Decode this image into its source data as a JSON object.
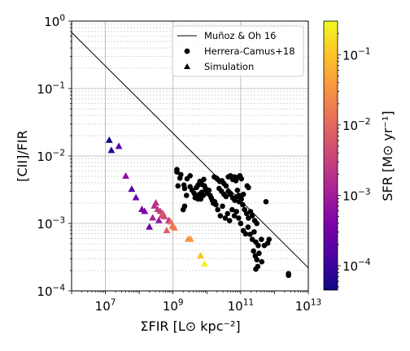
{
  "chart_data": {
    "type": "scatter",
    "title": "",
    "xlabel": "ΣFIR [L⊙ kpc⁻²]",
    "ylabel": "[CII]/FIR",
    "xscale": "log",
    "yscale": "log",
    "xlim": [
      1000000.0,
      10000000000000.0
    ],
    "ylim": [
      0.0001,
      1
    ],
    "grid": true,
    "legend_position": "top-right",
    "x_ticks": [
      {
        "value": 10000000.0,
        "label_base": "10",
        "label_exp": "7"
      },
      {
        "value": 1000000000.0,
        "label_base": "10",
        "label_exp": "9"
      },
      {
        "value": 100000000000.0,
        "label_base": "10",
        "label_exp": "11"
      },
      {
        "value": 10000000000000.0,
        "label_base": "10",
        "label_exp": "13"
      }
    ],
    "y_ticks": [
      {
        "value": 0.0001,
        "label_base": "10",
        "label_exp": "−4"
      },
      {
        "value": 0.001,
        "label_base": "10",
        "label_exp": "−3"
      },
      {
        "value": 0.01,
        "label_base": "10",
        "label_exp": "−2"
      },
      {
        "value": 0.1,
        "label_base": "10",
        "label_exp": "−1"
      },
      {
        "value": 1,
        "label_base": "10",
        "label_exp": "0"
      }
    ],
    "colorbar": {
      "label": "SFR [M⊙ yr⁻¹]",
      "scale": "log",
      "range": [
        4.5e-05,
        0.3
      ],
      "colormap": "plasma",
      "ticks": [
        {
          "value": 0.0001,
          "label_base": "10",
          "label_exp": "−4"
        },
        {
          "value": 0.001,
          "label_base": "10",
          "label_exp": "−3"
        },
        {
          "value": 0.01,
          "label_base": "10",
          "label_exp": "−2"
        },
        {
          "value": 0.1,
          "label_base": "10",
          "label_exp": "−1"
        }
      ]
    },
    "series": [
      {
        "name": "Muñoz & Oh 16",
        "kind": "line",
        "color": "#000000",
        "points": [
          [
            1000000.0,
            0.68
          ],
          [
            10000000000000.0,
            0.00022
          ]
        ]
      },
      {
        "name": "Herrera-Camus+18",
        "kind": "scatter",
        "marker": "circle",
        "color": "#000000",
        "points": [
          [
            1300000000.0,
            0.0063
          ],
          [
            1300000000.0,
            0.0058
          ],
          [
            1700000000.0,
            0.0053
          ],
          [
            1600000000.0,
            0.0047
          ],
          [
            1400000000.0,
            0.0036
          ],
          [
            2100000000.0,
            0.0037
          ],
          [
            2600000000.0,
            0.0046
          ],
          [
            3200000000.0,
            0.0051
          ],
          [
            2200000000.0,
            0.0033
          ],
          [
            2500000000.0,
            0.0026
          ],
          [
            2200000000.0,
            0.0018
          ],
          [
            2000000000.0,
            0.0016
          ],
          [
            3200000000.0,
            0.0035
          ],
          [
            3700000000.0,
            0.0031
          ],
          [
            4200000000.0,
            0.0028
          ],
          [
            4500000000.0,
            0.0024
          ],
          [
            5000000000.0,
            0.0025
          ],
          [
            5500000000.0,
            0.0023
          ],
          [
            6000000000.0,
            0.0027
          ],
          [
            6600000000.0,
            0.0023
          ],
          [
            7100000000.0,
            0.0029
          ],
          [
            7800000000.0,
            0.0026
          ],
          [
            4900000000.0,
            0.0034
          ],
          [
            5500000000.0,
            0.0037
          ],
          [
            6200000000.0,
            0.0042
          ],
          [
            7100000000.0,
            0.0038
          ],
          [
            8100000000.0,
            0.0045
          ],
          [
            8500000000.0,
            0.0036
          ],
          [
            9100000000.0,
            0.0033
          ],
          [
            10000000000.0,
            0.003
          ],
          [
            10500000000.0,
            0.0028
          ],
          [
            11500000000.0,
            0.0031
          ],
          [
            12500000000.0,
            0.0026
          ],
          [
            13500000000.0,
            0.0024
          ],
          [
            14500000000.0,
            0.0022
          ],
          [
            15500000000.0,
            0.002
          ],
          [
            17000000000.0,
            0.0021
          ],
          [
            18500000000.0,
            0.0019
          ],
          [
            16500000000.0,
            0.0049
          ],
          [
            19000000000.0,
            0.0047
          ],
          [
            21000000000.0,
            0.0045
          ],
          [
            24000000000.0,
            0.0042
          ],
          [
            28000000000.0,
            0.0043
          ],
          [
            32000000000.0,
            0.0039
          ],
          [
            37000000000.0,
            0.0036
          ],
          [
            43000000000.0,
            0.0049
          ],
          [
            50000000000.0,
            0.0051
          ],
          [
            58000000000.0,
            0.0045
          ],
          [
            65000000000.0,
            0.0049
          ],
          [
            72000000000.0,
            0.0043
          ],
          [
            80000000000.0,
            0.0048
          ],
          [
            95000000000.0,
            0.0051
          ],
          [
            105000000000.0,
            0.0046
          ],
          [
            23000000000.0,
            0.0033
          ],
          [
            27000000000.0,
            0.003
          ],
          [
            32000000000.0,
            0.0027
          ],
          [
            37000000000.0,
            0.0025
          ],
          [
            43000000000.0,
            0.003
          ],
          [
            50000000000.0,
            0.0027
          ],
          [
            58000000000.0,
            0.0024
          ],
          [
            67000000000.0,
            0.0022
          ],
          [
            78000000000.0,
            0.0025
          ],
          [
            90000000000.0,
            0.0021
          ],
          [
            105000000000.0,
            0.0023
          ],
          [
            21000000000.0,
            0.0016
          ],
          [
            25000000000.0,
            0.0013
          ],
          [
            29000000000.0,
            0.0018
          ],
          [
            35000000000.0,
            0.0012
          ],
          [
            41000000000.0,
            0.0014
          ],
          [
            47000000000.0,
            0.0011
          ],
          [
            56000000000.0,
            0.0016
          ],
          [
            65000000000.0,
            0.0013
          ],
          [
            75000000000.0,
            0.0015
          ],
          [
            87000000000.0,
            0.0012
          ],
          [
            100000000000.0,
            0.001
          ],
          [
            115000000000.0,
            0.0019
          ],
          [
            130000000000.0,
            0.0016
          ],
          [
            150000000000.0,
            0.0014
          ],
          [
            170000000000.0,
            0.0012
          ],
          [
            195000000000.0,
            0.0015
          ],
          [
            120000000000.0,
            0.00078
          ],
          [
            140000000000.0,
            0.0007
          ],
          [
            165000000000.0,
            0.00088
          ],
          [
            190000000000.0,
            0.00069
          ],
          [
            220000000000.0,
            0.00058
          ],
          [
            250000000000.0,
            0.00075
          ],
          [
            280000000000.0,
            0.00053
          ],
          [
            330000000000.0,
            0.00047
          ],
          [
            410000000000.0,
            0.00058
          ],
          [
            500000000000.0,
            0.00047
          ],
          [
            240000000000.0,
            0.00039
          ],
          [
            270000000000.0,
            0.00033
          ],
          [
            300000000000.0,
            0.00029
          ],
          [
            350000000000.0,
            0.00036
          ],
          [
            320000000000.0,
            0.00023
          ],
          [
            280000000000.0,
            0.00021
          ],
          [
            420000000000.0,
            0.00027
          ],
          [
            630000000000.0,
            0.00051
          ],
          [
            690000000000.0,
            0.00058
          ],
          [
            220000000000.0,
            0.0013
          ],
          [
            260000000000.0,
            0.0011
          ],
          [
            300000000000.0,
            0.001
          ],
          [
            155000000000.0,
            0.0036
          ],
          [
            170000000000.0,
            0.0034
          ],
          [
            560000000000.0,
            0.0021
          ],
          [
            2600000000000.0,
            0.00018
          ],
          [
            2600000000000.0,
            0.00017
          ],
          [
            80000000000.0,
            0.0031
          ],
          [
            88000000000.0,
            0.0026
          ],
          [
            120000000000.0,
            0.0027
          ]
        ]
      },
      {
        "name": "Simulation",
        "kind": "scatter",
        "marker": "triangle",
        "points": [
          [
            13000000.0,
            0.017,
            4.8e-05
          ],
          [
            15000000.0,
            0.012,
            7e-05
          ],
          [
            25000000.0,
            0.0138,
            0.00018
          ],
          [
            40000000.0,
            0.005,
            0.0006
          ],
          [
            60000000.0,
            0.0032,
            0.00015
          ],
          [
            80000000.0,
            0.0024,
            0.00025
          ],
          [
            120000000.0,
            0.0016,
            0.00035
          ],
          [
            145000000.0,
            0.0015,
            0.0004
          ],
          [
            200000000.0,
            0.00088,
            0.0003
          ],
          [
            250000000.0,
            0.0012,
            0.0012
          ],
          [
            280000000.0,
            0.0018,
            0.0015
          ],
          [
            310000000.0,
            0.002,
            0.002
          ],
          [
            350000000.0,
            0.0016,
            0.0025
          ],
          [
            380000000.0,
            0.0011,
            0.0008
          ],
          [
            420000000.0,
            0.0015,
            0.003
          ],
          [
            460000000.0,
            0.0013,
            0.004
          ],
          [
            500000000.0,
            0.0014,
            0.006
          ],
          [
            560000000.0,
            0.00125,
            0.005
          ],
          [
            650000000.0,
            0.00078,
            0.008
          ],
          [
            750000000.0,
            0.0011,
            0.002
          ],
          [
            850000000.0,
            0.00105,
            0.012
          ],
          [
            950000000.0,
            0.0009,
            0.015
          ],
          [
            1100000000.0,
            0.00085,
            0.018
          ],
          [
            2800000000.0,
            0.00058,
            0.03
          ],
          [
            3300000000.0,
            0.00058,
            0.035
          ],
          [
            6500000000.0,
            0.00033,
            0.1
          ],
          [
            8500000000.0,
            0.00025,
            0.25
          ]
        ]
      }
    ]
  },
  "legend": [
    {
      "label": "Muñoz & Oh 16",
      "marker": "line"
    },
    {
      "label": "Herrera-Camus+18",
      "marker": "circle"
    },
    {
      "label": "Simulation",
      "marker": "triangle"
    }
  ]
}
